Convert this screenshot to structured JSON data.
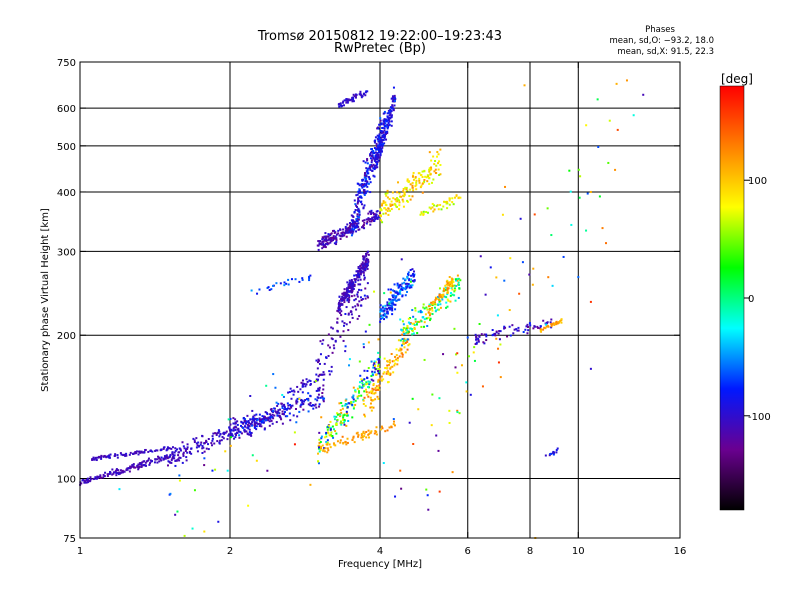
{
  "chart_data": {
    "type": "scatter",
    "title": "Tromsø 20150812 19:22:00–19:23:43",
    "subtitle": "RwPretec (Bp)",
    "xlabel": "Frequency [MHz]",
    "ylabel": "Stationary phase Virtual Height [km]",
    "x_scale": "log",
    "y_scale": "log",
    "xlim": [
      1,
      16
    ],
    "ylim": [
      75,
      750
    ],
    "x_ticks": [
      1,
      2,
      4,
      6,
      8,
      10,
      16
    ],
    "x_gridlines": [
      2,
      4,
      6,
      8,
      10
    ],
    "y_ticks": [
      75,
      100,
      200,
      300,
      400,
      500,
      600,
      750
    ],
    "y_gridlines": [
      100,
      200,
      300,
      400,
      500,
      600
    ],
    "grid": true,
    "phase_stats": {
      "heading": "Phases",
      "line_o": "mean, sd,O: −93.2, 18.0",
      "line_x": "mean, sd,X:  91.5, 22.3"
    },
    "colorbar": {
      "label": "[deg]",
      "min": -180,
      "max": 180,
      "ticks": [
        100,
        0,
        -100
      ],
      "colors": [
        "#000000",
        "#6a0090",
        "#0018ff",
        "#00ffff",
        "#00ff00",
        "#ffff00",
        "#ff8000",
        "#ff0000"
      ]
    },
    "traces": [
      {
        "x0": 1.0,
        "x1": 1.55,
        "y0": 98,
        "y1": 112,
        "n": 160,
        "spread": 0.01,
        "c0": -120,
        "c1": -100
      },
      {
        "x0": 1.05,
        "x1": 1.55,
        "y0": 110,
        "y1": 116,
        "n": 90,
        "spread": 0.008,
        "c0": -115,
        "c1": -95
      },
      {
        "x0": 1.5,
        "x1": 2.6,
        "y0": 110,
        "y1": 140,
        "n": 230,
        "spread": 0.04,
        "c0": -120,
        "c1": -90
      },
      {
        "x0": 2.0,
        "x1": 3.1,
        "y0": 125,
        "y1": 150,
        "n": 180,
        "spread": 0.05,
        "c0": -120,
        "c1": -60
      },
      {
        "x0": 2.6,
        "x1": 3.2,
        "y0": 150,
        "y1": 170,
        "n": 40,
        "spread": 0.02,
        "c0": -110,
        "c1": -90
      },
      {
        "x0": 3.0,
        "x1": 4.0,
        "y0": 115,
        "y1": 175,
        "n": 200,
        "spread": 0.06,
        "c0": -120,
        "c1": 120
      },
      {
        "x0": 3.0,
        "x1": 4.3,
        "y0": 115,
        "y1": 130,
        "n": 70,
        "spread": 0.02,
        "c0": 100,
        "c1": 130
      },
      {
        "x0": 3.7,
        "x1": 4.6,
        "y0": 140,
        "y1": 200,
        "n": 120,
        "spread": 0.06,
        "c0": 80,
        "c1": 140
      },
      {
        "x0": 3.0,
        "x1": 3.8,
        "y0": 175,
        "y1": 260,
        "n": 90,
        "spread": 0.09,
        "c0": -130,
        "c1": -90
      },
      {
        "x0": 3.3,
        "x1": 3.8,
        "y0": 230,
        "y1": 290,
        "n": 220,
        "spread": 0.035,
        "c0": -120,
        "c1": -90
      },
      {
        "x0": 3.0,
        "x1": 4.0,
        "y0": 310,
        "y1": 360,
        "n": 220,
        "spread": 0.03,
        "c0": -130,
        "c1": -90
      },
      {
        "x0": 3.5,
        "x1": 4.1,
        "y0": 340,
        "y1": 560,
        "n": 260,
        "spread": 0.08,
        "c0": -120,
        "c1": -60
      },
      {
        "x0": 3.9,
        "x1": 4.3,
        "y0": 450,
        "y1": 640,
        "n": 140,
        "spread": 0.05,
        "c0": -110,
        "c1": -70
      },
      {
        "x0": 3.3,
        "x1": 3.8,
        "y0": 610,
        "y1": 650,
        "n": 50,
        "spread": 0.015,
        "c0": -110,
        "c1": -90
      },
      {
        "x0": 4.0,
        "x1": 5.3,
        "y0": 360,
        "y1": 460,
        "n": 160,
        "spread": 0.06,
        "c0": 60,
        "c1": 120
      },
      {
        "x0": 4.8,
        "x1": 5.8,
        "y0": 360,
        "y1": 390,
        "n": 40,
        "spread": 0.02,
        "c0": 50,
        "c1": 100
      },
      {
        "x0": 4.0,
        "x1": 4.7,
        "y0": 220,
        "y1": 270,
        "n": 160,
        "spread": 0.05,
        "c0": -100,
        "c1": -40
      },
      {
        "x0": 4.4,
        "x1": 5.8,
        "y0": 200,
        "y1": 260,
        "n": 160,
        "spread": 0.06,
        "c0": -60,
        "c1": 120
      },
      {
        "x0": 5.0,
        "x1": 5.6,
        "y0": 225,
        "y1": 260,
        "n": 60,
        "spread": 0.03,
        "c0": 90,
        "c1": 130
      },
      {
        "x0": 2.2,
        "x1": 2.9,
        "y0": 245,
        "y1": 265,
        "n": 25,
        "spread": 0.02,
        "c0": -90,
        "c1": -50
      },
      {
        "x0": 6.2,
        "x1": 8.9,
        "y0": 195,
        "y1": 215,
        "n": 70,
        "spread": 0.03,
        "c0": -130,
        "c1": -80
      },
      {
        "x0": 8.4,
        "x1": 9.3,
        "y0": 205,
        "y1": 215,
        "n": 30,
        "spread": 0.01,
        "c0": 100,
        "c1": 130
      },
      {
        "x0": 8.6,
        "x1": 9.1,
        "y0": 111,
        "y1": 115,
        "n": 14,
        "spread": 0.01,
        "c0": -70,
        "c1": -110
      },
      {
        "x0": 4.0,
        "x1": 13.0,
        "y0": 90,
        "y1": 650,
        "n": 90,
        "spread": 0.35,
        "c0": -130,
        "c1": 170
      },
      {
        "x0": 1.5,
        "x1": 5.0,
        "y0": 85,
        "y1": 250,
        "n": 60,
        "spread": 0.25,
        "c0": -130,
        "c1": 120
      }
    ],
    "isolated_points": [
      {
        "x": 5.0,
        "y": 86,
        "phase": -120
      },
      {
        "x": 13.5,
        "y": 640,
        "phase": -110
      },
      {
        "x": 12.0,
        "y": 540,
        "phase": 150
      },
      {
        "x": 7.8,
        "y": 670,
        "phase": 110
      },
      {
        "x": 10.6,
        "y": 400,
        "phase": 110
      },
      {
        "x": 10.6,
        "y": 235,
        "phase": 160
      },
      {
        "x": 10.6,
        "y": 170,
        "phase": -100
      },
      {
        "x": 10.0,
        "y": 265,
        "phase": -60
      },
      {
        "x": 8.2,
        "y": 75,
        "phase": 110
      },
      {
        "x": 2.7,
        "y": 118,
        "phase": 170
      },
      {
        "x": 2.9,
        "y": 97,
        "phase": 110
      },
      {
        "x": 1.2,
        "y": 95,
        "phase": -30
      }
    ]
  }
}
